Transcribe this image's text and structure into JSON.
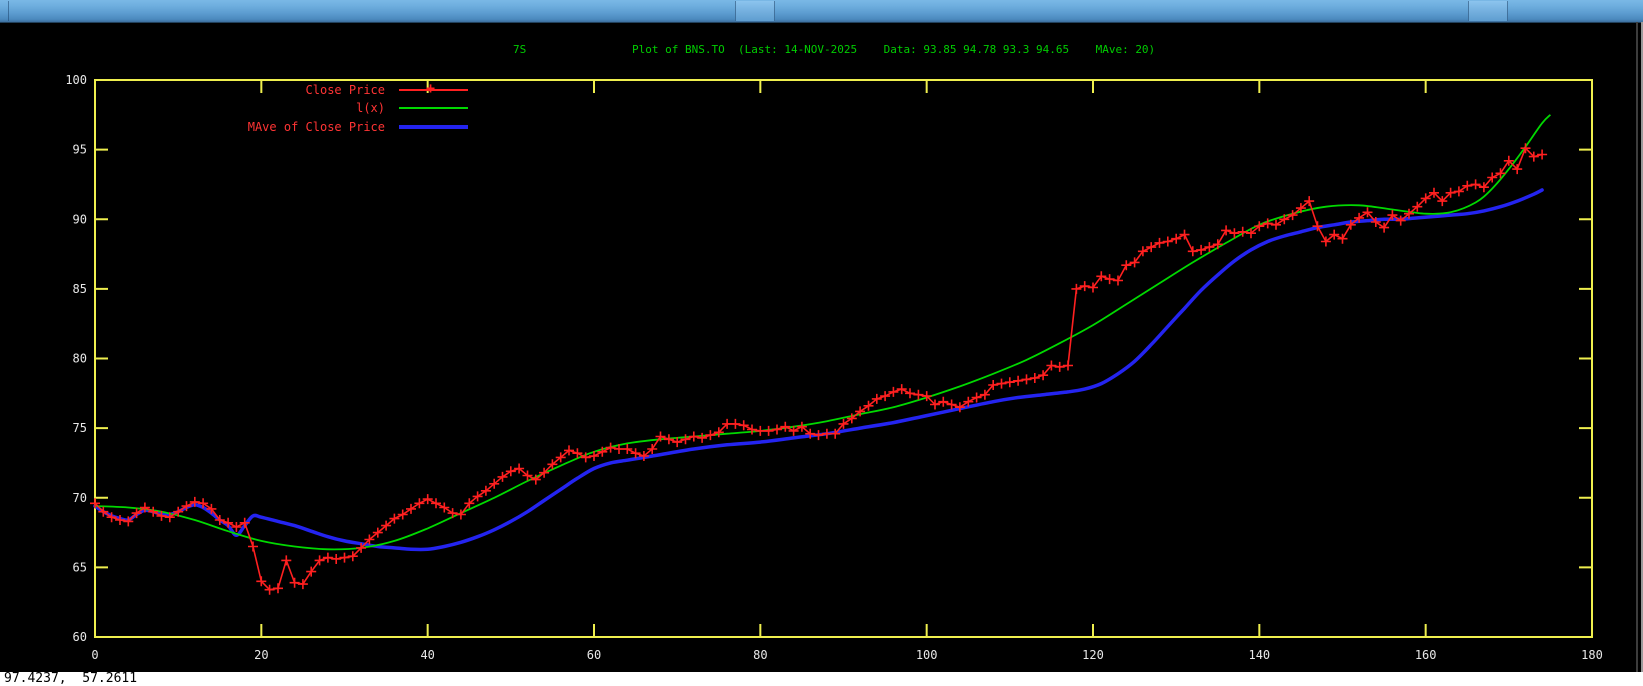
{
  "window": {
    "statusbar": {
      "coords": "97.4237,  57.2611"
    }
  },
  "header": {
    "left_label": "7S",
    "title": "Plot of BNS.TO  (Last: 14-NOV-2025    Data: 93.85 94.78 93.3 94.65    MAve: 20)"
  },
  "legend": [
    {
      "label": "Close Price",
      "color": "#ff2020",
      "style": "line-with-cross"
    },
    {
      "label": "l(x)",
      "color": "#00d900",
      "style": "line"
    },
    {
      "label": "MAve of Close Price",
      "color": "#2424f0",
      "style": "thick-line"
    }
  ],
  "colors": {
    "background": "#000000",
    "border": "#efef4e",
    "tick_label": "#e8e8e8",
    "title_text": "#00cd00",
    "legend_text": "#ff3434",
    "close": "#ff2020",
    "lx": "#00d900",
    "mave": "#2424f0",
    "status_bg": "#ffffff",
    "status_text": "#000000"
  },
  "chart_data": {
    "type": "line",
    "title": "Plot of BNS.TO (Last: 14-NOV-2025  Data: 93.85 94.78 93.3 94.65  MAve: 20)",
    "xlabel": "",
    "ylabel": "",
    "xlim": [
      0,
      180
    ],
    "ylim": [
      60,
      100
    ],
    "xticks": [
      0,
      20,
      40,
      60,
      80,
      100,
      120,
      140,
      160,
      180
    ],
    "yticks": [
      60,
      65,
      70,
      75,
      80,
      85,
      90,
      95,
      100
    ],
    "grid": false,
    "legend_position": "top-left-inside",
    "series": [
      {
        "name": "Close Price",
        "type": "linespoints",
        "marker": "plus",
        "color": "#ff2020",
        "x_start": 0,
        "x_step": 1,
        "values": [
          69.6,
          69.0,
          68.6,
          68.4,
          68.3,
          68.9,
          69.3,
          69.0,
          68.7,
          68.6,
          69.0,
          69.4,
          69.7,
          69.6,
          69.2,
          68.4,
          68.2,
          67.9,
          68.2,
          66.5,
          64.0,
          63.4,
          63.5,
          65.5,
          63.9,
          63.8,
          64.7,
          65.5,
          65.7,
          65.6,
          65.7,
          65.8,
          66.4,
          67.0,
          67.5,
          68.0,
          68.5,
          68.8,
          69.2,
          69.6,
          69.9,
          69.6,
          69.3,
          68.9,
          68.8,
          69.6,
          70.1,
          70.5,
          71.0,
          71.5,
          71.9,
          72.1,
          71.6,
          71.3,
          71.8,
          72.4,
          72.9,
          73.4,
          73.2,
          72.9,
          73.0,
          73.3,
          73.6,
          73.5,
          73.5,
          73.2,
          73.0,
          73.5,
          74.4,
          74.2,
          74.0,
          74.2,
          74.4,
          74.3,
          74.5,
          74.7,
          75.3,
          75.3,
          75.2,
          74.9,
          74.8,
          74.8,
          74.9,
          75.1,
          74.8,
          75.1,
          74.6,
          74.5,
          74.6,
          74.6,
          75.3,
          75.7,
          76.2,
          76.6,
          77.1,
          77.3,
          77.6,
          77.8,
          77.5,
          77.4,
          77.3,
          76.7,
          76.9,
          76.7,
          76.5,
          76.9,
          77.2,
          77.4,
          78.1,
          78.2,
          78.3,
          78.4,
          78.5,
          78.6,
          78.8,
          79.5,
          79.4,
          79.5,
          85.0,
          85.2,
          85.1,
          85.9,
          85.7,
          85.6,
          86.7,
          86.9,
          87.7,
          88.0,
          88.3,
          88.4,
          88.6,
          88.9,
          87.7,
          87.8,
          88.0,
          88.2,
          89.2,
          89.0,
          89.1,
          89.0,
          89.5,
          89.7,
          89.6,
          90.0,
          90.3,
          90.8,
          91.3,
          89.5,
          88.4,
          88.9,
          88.6,
          89.6,
          90.1,
          90.5,
          89.8,
          89.4,
          90.3,
          89.9,
          90.4,
          90.9,
          91.5,
          91.9,
          91.3,
          91.9,
          92.0,
          92.4,
          92.5,
          92.3,
          93.0,
          93.3,
          94.2,
          93.6,
          95.1,
          94.5,
          94.65
        ]
      },
      {
        "name": "l(x)",
        "type": "line",
        "color": "#00d900",
        "points": [
          [
            0,
            69.4
          ],
          [
            4,
            69.3
          ],
          [
            8,
            69.0
          ],
          [
            12,
            68.4
          ],
          [
            16,
            67.6
          ],
          [
            20,
            66.9
          ],
          [
            24,
            66.5
          ],
          [
            28,
            66.3
          ],
          [
            32,
            66.4
          ],
          [
            36,
            66.9
          ],
          [
            40,
            67.8
          ],
          [
            44,
            68.9
          ],
          [
            48,
            70.0
          ],
          [
            52,
            71.2
          ],
          [
            56,
            72.3
          ],
          [
            60,
            73.3
          ],
          [
            64,
            73.9
          ],
          [
            68,
            74.2
          ],
          [
            72,
            74.4
          ],
          [
            76,
            74.6
          ],
          [
            80,
            74.8
          ],
          [
            84,
            75.1
          ],
          [
            88,
            75.5
          ],
          [
            92,
            76.0
          ],
          [
            96,
            76.5
          ],
          [
            100,
            77.2
          ],
          [
            104,
            78.0
          ],
          [
            108,
            78.9
          ],
          [
            112,
            79.9
          ],
          [
            116,
            81.1
          ],
          [
            120,
            82.4
          ],
          [
            124,
            83.9
          ],
          [
            128,
            85.4
          ],
          [
            132,
            86.9
          ],
          [
            136,
            88.3
          ],
          [
            140,
            89.6
          ],
          [
            144,
            90.4
          ],
          [
            148,
            90.9
          ],
          [
            152,
            91.0
          ],
          [
            156,
            90.7
          ],
          [
            160,
            90.4
          ],
          [
            163,
            90.5
          ],
          [
            166,
            91.2
          ],
          [
            168,
            92.2
          ],
          [
            170,
            93.6
          ],
          [
            172,
            95.2
          ],
          [
            174,
            96.9
          ],
          [
            175,
            97.5
          ]
        ]
      },
      {
        "name": "MAve of Close Price",
        "type": "line",
        "color": "#2424f0",
        "points": [
          [
            0,
            69.4
          ],
          [
            1,
            69.0
          ],
          [
            2,
            68.7
          ],
          [
            3,
            68.5
          ],
          [
            4,
            68.4
          ],
          [
            5,
            68.8
          ],
          [
            6,
            69.1
          ],
          [
            7,
            69.0
          ],
          [
            8,
            68.8
          ],
          [
            9,
            68.8
          ],
          [
            10,
            69.0
          ],
          [
            11,
            69.3
          ],
          [
            12,
            69.5
          ],
          [
            13,
            69.3
          ],
          [
            14,
            68.9
          ],
          [
            15,
            68.4
          ],
          [
            16,
            68.0
          ],
          [
            17,
            67.3
          ],
          [
            18,
            68.0
          ],
          [
            19,
            68.7
          ],
          [
            20,
            68.6
          ],
          [
            22,
            68.3
          ],
          [
            24,
            68.0
          ],
          [
            26,
            67.6
          ],
          [
            28,
            67.2
          ],
          [
            30,
            66.9
          ],
          [
            32,
            66.7
          ],
          [
            34,
            66.5
          ],
          [
            36,
            66.4
          ],
          [
            38,
            66.3
          ],
          [
            40,
            66.3
          ],
          [
            42,
            66.5
          ],
          [
            44,
            66.8
          ],
          [
            46,
            67.2
          ],
          [
            48,
            67.7
          ],
          [
            50,
            68.3
          ],
          [
            52,
            69.0
          ],
          [
            54,
            69.8
          ],
          [
            56,
            70.6
          ],
          [
            58,
            71.4
          ],
          [
            60,
            72.1
          ],
          [
            62,
            72.5
          ],
          [
            64,
            72.7
          ],
          [
            66,
            72.9
          ],
          [
            68,
            73.1
          ],
          [
            72,
            73.5
          ],
          [
            76,
            73.8
          ],
          [
            80,
            74.0
          ],
          [
            84,
            74.3
          ],
          [
            88,
            74.6
          ],
          [
            92,
            75.0
          ],
          [
            96,
            75.4
          ],
          [
            100,
            75.9
          ],
          [
            104,
            76.4
          ],
          [
            108,
            76.9
          ],
          [
            111,
            77.2
          ],
          [
            114,
            77.4
          ],
          [
            117,
            77.6
          ],
          [
            119,
            77.8
          ],
          [
            121,
            78.2
          ],
          [
            123,
            78.9
          ],
          [
            125,
            79.8
          ],
          [
            127,
            81.0
          ],
          [
            129,
            82.3
          ],
          [
            131,
            83.6
          ],
          [
            133,
            84.9
          ],
          [
            135,
            86.0
          ],
          [
            137,
            87.0
          ],
          [
            139,
            87.8
          ],
          [
            141,
            88.4
          ],
          [
            143,
            88.8
          ],
          [
            145,
            89.1
          ],
          [
            147,
            89.4
          ],
          [
            149,
            89.6
          ],
          [
            151,
            89.8
          ],
          [
            153,
            89.9
          ],
          [
            155,
            90.0
          ],
          [
            157,
            90.0
          ],
          [
            159,
            90.1
          ],
          [
            161,
            90.2
          ],
          [
            163,
            90.3
          ],
          [
            165,
            90.4
          ],
          [
            167,
            90.6
          ],
          [
            169,
            90.9
          ],
          [
            171,
            91.3
          ],
          [
            173,
            91.8
          ],
          [
            174,
            92.1
          ]
        ]
      }
    ]
  }
}
